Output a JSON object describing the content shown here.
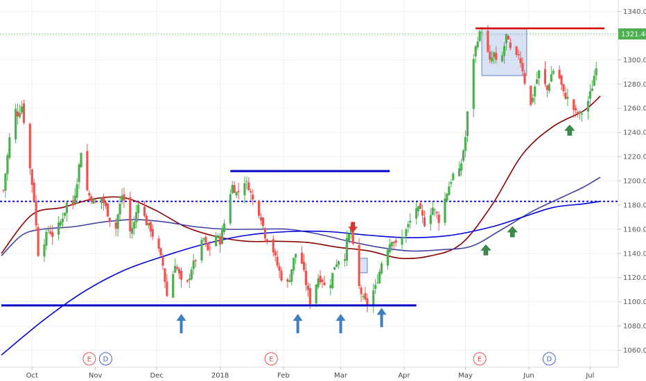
{
  "chart_data": {
    "type": "candlestick",
    "title": "",
    "xlabel": "",
    "ylabel": "",
    "ylim": [
      1046,
      1346
    ],
    "y_ticks": [
      1060,
      1080,
      1100,
      1120,
      1140,
      1160,
      1180,
      1200,
      1220,
      1240,
      1260,
      1280,
      1300,
      1320,
      1340
    ],
    "y_tick_labels": [
      "1060.00",
      "1080.00",
      "1100.00",
      "1120.00",
      "1140.00",
      "1160.00",
      "1180.00",
      "1200.00",
      "1220.00",
      "1240.00",
      "1260.00",
      "1280.00",
      "1300.00",
      "1320.00",
      "1340.00"
    ],
    "x_tick_labels": [
      {
        "label": "Oct",
        "day": 15
      },
      {
        "label": "Nov",
        "day": 46
      },
      {
        "label": "Dec",
        "day": 76
      },
      {
        "label": "2018",
        "day": 107
      },
      {
        "label": "Feb",
        "day": 138
      },
      {
        "label": "Mar",
        "day": 166
      },
      {
        "label": "Apr",
        "day": 197
      },
      {
        "label": "May",
        "day": 227
      },
      {
        "label": "Jun",
        "day": 258
      },
      {
        "label": "Jul",
        "day": 288
      }
    ],
    "last_price": 1321.4,
    "last_price_label": "1321.40",
    "colors": {
      "up": "#4caf50",
      "down": "#ef5350",
      "ma_red": "#8b0000",
      "ma_navy": "#4040a0",
      "ma_blue": "#0000dd",
      "level": "#0000cc",
      "resistance": "#dd0000",
      "arrow_blue": "#3d7fc0",
      "arrow_green": "#3a8a4a"
    },
    "anchors": [
      [
        1,
        1192
      ],
      [
        4,
        1235
      ],
      [
        6,
        1262
      ],
      [
        8,
        1255
      ],
      [
        10,
        1262
      ],
      [
        12,
        1238
      ],
      [
        14,
        1210
      ],
      [
        16,
        1185
      ],
      [
        18,
        1140
      ],
      [
        19,
        1126
      ],
      [
        21,
        1150
      ],
      [
        23,
        1160
      ],
      [
        25,
        1155
      ],
      [
        27,
        1160
      ],
      [
        29,
        1166
      ],
      [
        31,
        1175
      ],
      [
        33,
        1188
      ],
      [
        35,
        1180
      ],
      [
        37,
        1200
      ],
      [
        39,
        1225
      ],
      [
        41,
        1196
      ],
      [
        43,
        1188
      ],
      [
        45,
        1183
      ],
      [
        47,
        1180
      ],
      [
        49,
        1186
      ],
      [
        51,
        1178
      ],
      [
        53,
        1168
      ],
      [
        55,
        1150
      ],
      [
        57,
        1172
      ],
      [
        59,
        1188
      ],
      [
        61,
        1180
      ],
      [
        63,
        1158
      ],
      [
        65,
        1165
      ],
      [
        67,
        1183
      ],
      [
        69,
        1175
      ],
      [
        71,
        1165
      ],
      [
        73,
        1160
      ],
      [
        75,
        1150
      ],
      [
        77,
        1142
      ],
      [
        79,
        1130
      ],
      [
        81,
        1105
      ],
      [
        83,
        1115
      ],
      [
        85,
        1132
      ],
      [
        87,
        1122
      ],
      [
        89,
        1110
      ],
      [
        91,
        1115
      ],
      [
        93,
        1128
      ],
      [
        95,
        1135
      ],
      [
        97,
        1145
      ],
      [
        99,
        1152
      ],
      [
        101,
        1142
      ],
      [
        103,
        1148
      ],
      [
        105,
        1155
      ],
      [
        107,
        1150
      ],
      [
        109,
        1165
      ],
      [
        111,
        1185
      ],
      [
        113,
        1196
      ],
      [
        115,
        1190
      ],
      [
        117,
        1192
      ],
      [
        119,
        1200
      ],
      [
        121,
        1195
      ],
      [
        123,
        1184
      ],
      [
        125,
        1178
      ],
      [
        127,
        1170
      ],
      [
        129,
        1155
      ],
      [
        131,
        1150
      ],
      [
        133,
        1142
      ],
      [
        135,
        1130
      ],
      [
        137,
        1120
      ],
      [
        139,
        1110
      ],
      [
        141,
        1120
      ],
      [
        143,
        1135
      ],
      [
        145,
        1145
      ],
      [
        147,
        1132
      ],
      [
        149,
        1115
      ],
      [
        151,
        1100
      ],
      [
        153,
        1110
      ],
      [
        155,
        1120
      ],
      [
        157,
        1118
      ],
      [
        159,
        1108
      ],
      [
        161,
        1116
      ],
      [
        163,
        1130
      ],
      [
        165,
        1135
      ],
      [
        167,
        1126
      ],
      [
        169,
        1150
      ],
      [
        171,
        1160
      ],
      [
        173,
        1130
      ],
      [
        175,
        1112
      ],
      [
        177,
        1102
      ],
      [
        179,
        1098
      ],
      [
        181,
        1106
      ],
      [
        183,
        1112
      ],
      [
        185,
        1125
      ],
      [
        187,
        1140
      ],
      [
        189,
        1145
      ],
      [
        191,
        1152
      ],
      [
        193,
        1147
      ],
      [
        195,
        1150
      ],
      [
        197,
        1155
      ],
      [
        199,
        1163
      ],
      [
        201,
        1170
      ],
      [
        203,
        1178
      ],
      [
        205,
        1174
      ],
      [
        207,
        1165
      ],
      [
        209,
        1170
      ],
      [
        211,
        1178
      ],
      [
        213,
        1172
      ],
      [
        215,
        1163
      ],
      [
        217,
        1185
      ],
      [
        219,
        1196
      ],
      [
        221,
        1205
      ],
      [
        223,
        1200
      ],
      [
        225,
        1215
      ],
      [
        227,
        1236
      ],
      [
        229,
        1275
      ],
      [
        231,
        1302
      ],
      [
        233,
        1318
      ],
      [
        235,
        1325
      ],
      [
        237,
        1312
      ],
      [
        239,
        1298
      ],
      [
        241,
        1305
      ],
      [
        243,
        1290
      ],
      [
        245,
        1303
      ],
      [
        247,
        1320
      ],
      [
        249,
        1308
      ],
      [
        251,
        1298
      ],
      [
        253,
        1305
      ],
      [
        255,
        1292
      ],
      [
        257,
        1272
      ],
      [
        259,
        1262
      ],
      [
        261,
        1278
      ],
      [
        263,
        1290
      ],
      [
        265,
        1283
      ],
      [
        267,
        1275
      ],
      [
        269,
        1288
      ],
      [
        271,
        1295
      ],
      [
        273,
        1285
      ],
      [
        275,
        1272
      ],
      [
        277,
        1268
      ],
      [
        279,
        1262
      ],
      [
        281,
        1256
      ],
      [
        283,
        1255
      ],
      [
        285,
        1258
      ],
      [
        287,
        1266
      ],
      [
        289,
        1278
      ],
      [
        291,
        1296
      ],
      [
        293,
        1321.4
      ]
    ],
    "moving_averages": [
      {
        "name": "",
        "color": "#8b0000",
        "width": 1.6,
        "points": [
          [
            0,
            1140
          ],
          [
            15,
            1172
          ],
          [
            30,
            1178
          ],
          [
            45,
            1185
          ],
          [
            60,
            1186
          ],
          [
            75,
            1176
          ],
          [
            90,
            1162
          ],
          [
            105,
            1154
          ],
          [
            120,
            1150
          ],
          [
            135,
            1150
          ],
          [
            150,
            1149
          ],
          [
            165,
            1145
          ],
          [
            180,
            1142
          ],
          [
            195,
            1136
          ],
          [
            210,
            1138
          ],
          [
            225,
            1148
          ],
          [
            240,
            1180
          ],
          [
            255,
            1222
          ],
          [
            270,
            1245
          ],
          [
            285,
            1258
          ],
          [
            293,
            1270
          ]
        ]
      },
      {
        "name": "",
        "color": "#4040a0",
        "width": 1.6,
        "points": [
          [
            0,
            1138
          ],
          [
            10,
            1155
          ],
          [
            20,
            1160
          ],
          [
            35,
            1162
          ],
          [
            50,
            1166
          ],
          [
            65,
            1168
          ],
          [
            80,
            1166
          ],
          [
            95,
            1162
          ],
          [
            110,
            1160
          ],
          [
            125,
            1160
          ],
          [
            140,
            1160
          ],
          [
            155,
            1156
          ],
          [
            170,
            1150
          ],
          [
            185,
            1145
          ],
          [
            200,
            1142
          ],
          [
            215,
            1143
          ],
          [
            230,
            1146
          ],
          [
            245,
            1160
          ],
          [
            260,
            1175
          ],
          [
            275,
            1187
          ],
          [
            285,
            1195
          ],
          [
            293,
            1203
          ]
        ]
      },
      {
        "name": "",
        "color": "#0000dd",
        "width": 1.6,
        "points": [
          [
            0,
            1056
          ],
          [
            20,
            1084
          ],
          [
            40,
            1108
          ],
          [
            60,
            1126
          ],
          [
            80,
            1138
          ],
          [
            100,
            1148
          ],
          [
            120,
            1155
          ],
          [
            140,
            1158
          ],
          [
            160,
            1158
          ],
          [
            180,
            1155
          ],
          [
            200,
            1153
          ],
          [
            220,
            1155
          ],
          [
            240,
            1162
          ],
          [
            255,
            1170
          ],
          [
            270,
            1178
          ],
          [
            285,
            1181
          ],
          [
            293,
            1183
          ]
        ]
      }
    ],
    "levels": {
      "dotted_level": 1183,
      "support": {
        "value": 1097,
        "day_start": 0,
        "day_end": 203
      },
      "upper_line": {
        "value": 1208,
        "day_start": 112,
        "day_end": 190
      },
      "resistance": {
        "value": 1326,
        "day_start": 232,
        "day_end": 295
      }
    },
    "boxes": [
      {
        "day_start": 235,
        "day_end": 257,
        "top": 1326,
        "bottom": 1287
      },
      {
        "day_start": 175,
        "day_end": 179,
        "top": 1136,
        "bottom": 1124
      }
    ],
    "arrows": [
      {
        "type": "up",
        "day": 88,
        "value": 1082,
        "color": "#3d7fc0"
      },
      {
        "type": "up",
        "day": 145,
        "value": 1082,
        "color": "#3d7fc0"
      },
      {
        "type": "up",
        "day": 166,
        "value": 1082,
        "color": "#3d7fc0"
      },
      {
        "type": "up",
        "day": 186,
        "value": 1087,
        "color": "#3d7fc0"
      },
      {
        "type": "up",
        "day": 237,
        "value": 1142,
        "color": "#3a8a4a"
      },
      {
        "type": "up",
        "day": 250,
        "value": 1157,
        "color": "#3a8a4a"
      },
      {
        "type": "up",
        "day": 278,
        "value": 1241,
        "color": "#3a8a4a"
      },
      {
        "type": "down",
        "day": 172,
        "value": 1162,
        "color": "#dd3333"
      }
    ],
    "events": [
      {
        "label": "E",
        "day": 43,
        "color": "#e05050"
      },
      {
        "label": "D",
        "day": 51,
        "color": "#4060c0"
      },
      {
        "label": "E",
        "day": 132,
        "color": "#e05050"
      },
      {
        "label": "E",
        "day": 234,
        "color": "#e05050"
      },
      {
        "label": "D",
        "day": 268,
        "color": "#4060c0"
      }
    ]
  }
}
